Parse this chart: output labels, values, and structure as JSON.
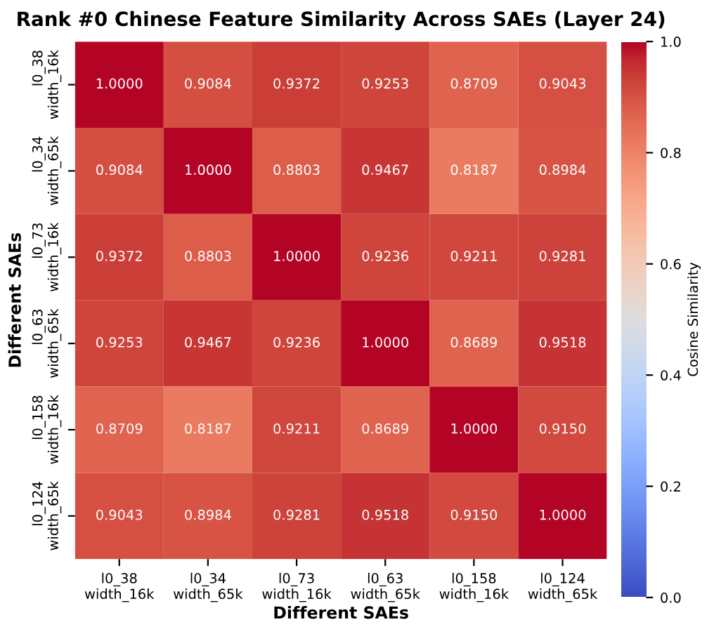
{
  "chart_data": {
    "type": "heatmap",
    "title": "Rank #0 Chinese Feature Similarity Across SAEs (Layer 24)",
    "xlabel": "Different SAEs",
    "ylabel": "Different SAEs",
    "clabel": "Cosine Similarity",
    "categories": [
      "l0_38\nwidth_16k",
      "l0_34\nwidth_65k",
      "l0_73\nwidth_16k",
      "l0_63\nwidth_65k",
      "l0_158\nwidth_16k",
      "l0_124\nwidth_65k"
    ],
    "y_categories": [
      "l0_38\nwidth_16k",
      "l0_34\nwidth_65k",
      "l0_73\nwidth_16k",
      "l0_63\nwidth_65k",
      "l0_158\nwidth_16k",
      "l0_124\nwidth_65k"
    ],
    "cells": [
      [
        1.0,
        0.9084,
        0.9372,
        0.9253,
        0.8709,
        0.9043
      ],
      [
        0.9084,
        1.0,
        0.8803,
        0.9467,
        0.8187,
        0.8984
      ],
      [
        0.9372,
        0.8803,
        1.0,
        0.9236,
        0.9211,
        0.9281
      ],
      [
        0.9253,
        0.9467,
        0.9236,
        1.0,
        0.8689,
        0.9518
      ],
      [
        0.8709,
        0.8187,
        0.9211,
        0.8689,
        1.0,
        0.915
      ],
      [
        0.9043,
        0.8984,
        0.9281,
        0.9518,
        0.915,
        1.0
      ]
    ],
    "cell_labels": [
      [
        "1.0000",
        "0.9084",
        "0.9372",
        "0.9253",
        "0.8709",
        "0.9043"
      ],
      [
        "0.9084",
        "1.0000",
        "0.8803",
        "0.9467",
        "0.8187",
        "0.8984"
      ],
      [
        "0.9372",
        "0.8803",
        "1.0000",
        "0.9236",
        "0.9211",
        "0.9281"
      ],
      [
        "0.9253",
        "0.9467",
        "0.9236",
        "1.0000",
        "0.8689",
        "0.9518"
      ],
      [
        "0.8709",
        "0.8187",
        "0.9211",
        "0.8689",
        "1.0000",
        "0.9150"
      ],
      [
        "0.9043",
        "0.8984",
        "0.9281",
        "0.9518",
        "0.9150",
        "1.0000"
      ]
    ],
    "clim": [
      0,
      1
    ],
    "cticks": [
      {
        "value": 0,
        "label": "0.0"
      },
      {
        "value": 0.2,
        "label": "0.2"
      },
      {
        "value": 0.4,
        "label": "0.4"
      },
      {
        "value": 0.6,
        "label": "0.6"
      },
      {
        "value": 0.8,
        "label": "0.8"
      },
      {
        "value": 1,
        "label": "1.0"
      }
    ]
  }
}
